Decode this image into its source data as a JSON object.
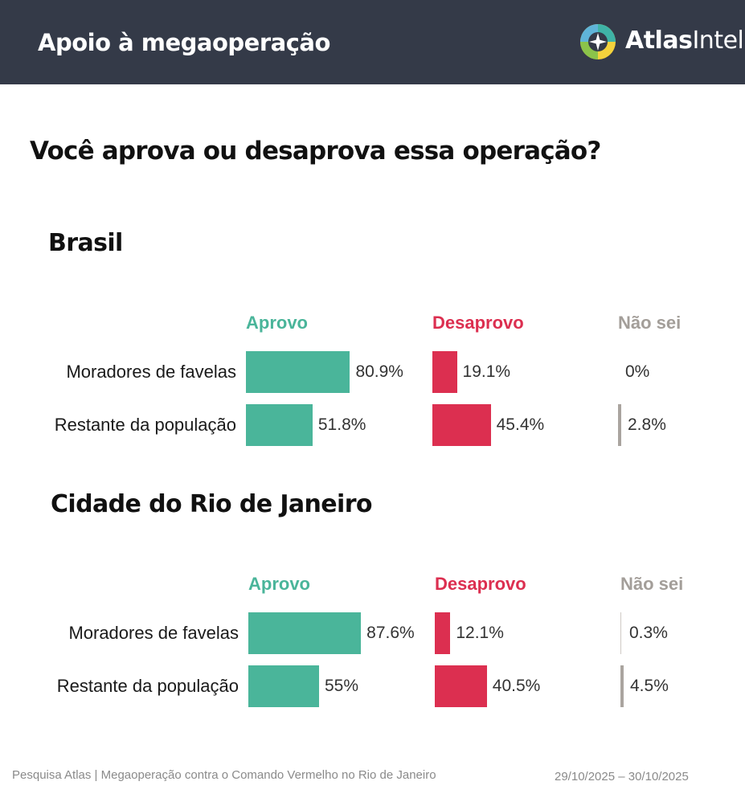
{
  "header": {
    "title": "Apoio à megaoperação",
    "logo_text_bold": "Atlas",
    "logo_text_light": "Intel"
  },
  "question": "Você aprova ou desaprova essa operação?",
  "colors": {
    "header_bg": "#343a48",
    "aprovo": "#4ab59a",
    "desaprovo": "#dc2f50",
    "nao_sei": "#aaa49f",
    "nao_sei_head": "#a39e99"
  },
  "columns": {
    "aprovo": "Aprovo",
    "desaprovo": "Desaprovo",
    "nao_sei": "Não sei"
  },
  "chart_data": [
    {
      "type": "bar",
      "title": "Brasil",
      "categories": [
        "Moradores de favelas",
        "Restante da população"
      ],
      "series": [
        {
          "name": "Aprovo",
          "values": [
            80.9,
            51.8
          ],
          "labels": [
            "80.9%",
            "51.8%"
          ]
        },
        {
          "name": "Desaprovo",
          "values": [
            19.1,
            45.4
          ],
          "labels": [
            "19.1%",
            "45.4%"
          ]
        },
        {
          "name": "Não sei",
          "values": [
            0,
            2.8
          ],
          "labels": [
            "0%",
            "2.8%"
          ]
        }
      ]
    },
    {
      "type": "bar",
      "title": "Cidade do Rio de Janeiro",
      "categories": [
        "Moradores de favelas",
        "Restante da população"
      ],
      "series": [
        {
          "name": "Aprovo",
          "values": [
            87.6,
            55
          ],
          "labels": [
            "87.6%",
            "55%"
          ]
        },
        {
          "name": "Desaprovo",
          "values": [
            12.1,
            40.5
          ],
          "labels": [
            "12.1%",
            "40.5%"
          ]
        },
        {
          "name": "Não sei",
          "values": [
            0.3,
            4.5
          ],
          "labels": [
            "0.3%",
            "4.5%"
          ]
        }
      ]
    }
  ],
  "footer": {
    "source": "Pesquisa Atlas | Megaoperação contra o Comando Vermelho no Rio de Janeiro",
    "dates": "29/10/2025 – 30/10/2025"
  }
}
